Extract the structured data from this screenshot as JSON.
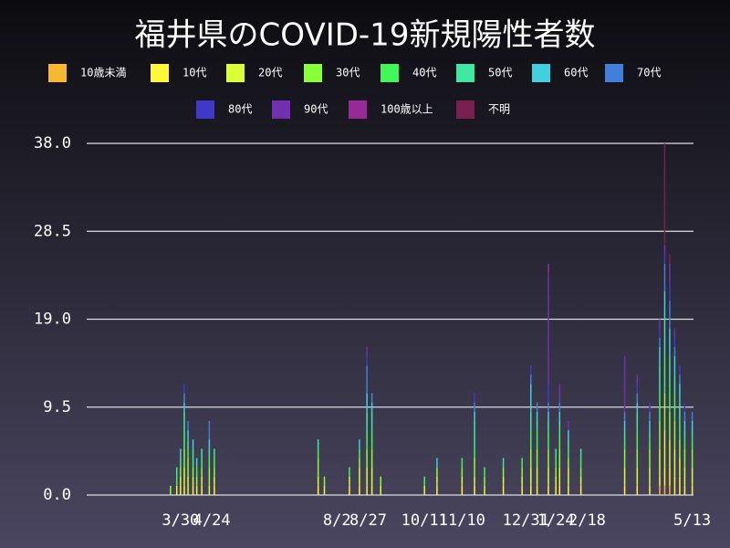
{
  "chart_data": {
    "type": "bar",
    "stacked": true,
    "title": "福井県のCOVID-19新規陽性者数",
    "x": [
      67,
      72,
      75,
      78,
      81,
      85,
      88,
      92,
      98,
      102,
      185,
      190,
      210,
      218,
      224,
      228,
      235,
      270,
      280,
      300,
      310,
      318,
      333,
      348,
      355,
      360,
      369,
      375,
      378,
      385,
      395,
      430,
      440,
      450,
      458,
      462,
      466,
      470,
      474,
      478,
      484
    ],
    "xlim": [
      0,
      485
    ],
    "xticks": [
      {
        "value": 75,
        "label": "3/30"
      },
      {
        "value": 100,
        "label": "4/24"
      },
      {
        "value": 200,
        "label": "8/2"
      },
      {
        "value": 225,
        "label": "8/27"
      },
      {
        "value": 270,
        "label": "10/11"
      },
      {
        "value": 300,
        "label": "11/10"
      },
      {
        "value": 351,
        "label": "12/31"
      },
      {
        "value": 375,
        "label": "1/24"
      },
      {
        "value": 400,
        "label": "2/18"
      },
      {
        "value": 484,
        "label": "5/13"
      }
    ],
    "ylim": [
      0,
      38
    ],
    "yticks": [
      {
        "value": 0,
        "label": "0.0"
      },
      {
        "value": 9.5,
        "label": "9.5"
      },
      {
        "value": 19,
        "label": "19.0"
      },
      {
        "value": 28.5,
        "label": "28.5"
      },
      {
        "value": 38,
        "label": "38.0"
      }
    ],
    "grid": true,
    "series": [
      {
        "name": "10歳未満",
        "color": "#f8b830",
        "values": [
          0,
          0,
          0,
          0,
          0,
          0,
          0,
          0,
          0,
          0,
          0,
          0,
          0,
          0,
          0,
          0,
          0,
          0,
          0,
          0,
          0,
          0,
          0,
          0,
          0,
          0,
          0,
          0,
          0,
          0,
          0,
          0,
          0,
          0,
          1,
          1,
          1,
          0,
          0,
          0,
          0
        ]
      },
      {
        "name": "10代",
        "color": "#fff838",
        "values": [
          0,
          0,
          1,
          1,
          0,
          1,
          0,
          1,
          0,
          1,
          1,
          0,
          1,
          1,
          1,
          1,
          0,
          0,
          1,
          1,
          1,
          0,
          1,
          1,
          1,
          1,
          1,
          1,
          1,
          1,
          1,
          1,
          1,
          1,
          1,
          2,
          2,
          2,
          2,
          1,
          1
        ]
      },
      {
        "name": "20代",
        "color": "#d8ff38",
        "values": [
          0,
          1,
          1,
          2,
          2,
          1,
          1,
          1,
          1,
          1,
          1,
          1,
          1,
          2,
          2,
          2,
          1,
          1,
          1,
          1,
          1,
          1,
          1,
          1,
          2,
          2,
          2,
          1,
          2,
          2,
          1,
          2,
          2,
          2,
          3,
          4,
          3,
          3,
          2,
          2,
          2
        ]
      },
      {
        "name": "30代",
        "color": "#88ff38",
        "values": [
          1,
          0,
          1,
          2,
          2,
          1,
          1,
          1,
          2,
          1,
          2,
          1,
          0,
          1,
          2,
          2,
          1,
          0,
          1,
          1,
          2,
          1,
          1,
          1,
          2,
          2,
          2,
          1,
          2,
          1,
          1,
          2,
          2,
          2,
          3,
          4,
          3,
          3,
          2,
          2,
          2
        ]
      },
      {
        "name": "40代",
        "color": "#40f858",
        "values": [
          0,
          1,
          0,
          2,
          1,
          1,
          1,
          1,
          1,
          1,
          1,
          0,
          1,
          1,
          2,
          2,
          0,
          1,
          0,
          1,
          1,
          1,
          0,
          1,
          2,
          2,
          2,
          1,
          2,
          1,
          1,
          1,
          2,
          1,
          3,
          4,
          3,
          3,
          2,
          1,
          1
        ]
      },
      {
        "name": "50代",
        "color": "#40e8a0",
        "values": [
          0,
          1,
          1,
          2,
          1,
          1,
          0,
          1,
          1,
          1,
          1,
          0,
          0,
          0,
          2,
          2,
          0,
          0,
          0,
          0,
          3,
          0,
          1,
          0,
          2,
          1,
          1,
          1,
          1,
          1,
          1,
          1,
          2,
          1,
          3,
          4,
          3,
          2,
          2,
          1,
          1
        ]
      },
      {
        "name": "60代",
        "color": "#40d0e0",
        "values": [
          0,
          0,
          1,
          1,
          1,
          1,
          1,
          0,
          1,
          0,
          0,
          0,
          0,
          1,
          2,
          1,
          0,
          0,
          1,
          0,
          1,
          0,
          0,
          0,
          3,
          1,
          1,
          0,
          1,
          1,
          0,
          1,
          1,
          1,
          2,
          3,
          3,
          2,
          2,
          1,
          1
        ]
      },
      {
        "name": "70代",
        "color": "#4080d8",
        "values": [
          0,
          0,
          0,
          1,
          1,
          0,
          0,
          0,
          2,
          0,
          0,
          0,
          0,
          0,
          3,
          1,
          0,
          0,
          0,
          0,
          1,
          0,
          0,
          0,
          1,
          1,
          1,
          0,
          1,
          0,
          0,
          1,
          1,
          1,
          1,
          3,
          3,
          1,
          1,
          1,
          1
        ]
      },
      {
        "name": "80代",
        "color": "#4038c8",
        "values": [
          0,
          0,
          0,
          1,
          0,
          0,
          0,
          0,
          0,
          0,
          0,
          0,
          0,
          0,
          1,
          0,
          0,
          0,
          0,
          0,
          1,
          0,
          0,
          0,
          1,
          0,
          2,
          0,
          0,
          0,
          0,
          0,
          1,
          1,
          1,
          1,
          2,
          1,
          1,
          1,
          0
        ]
      },
      {
        "name": "90代",
        "color": "#7030b0",
        "values": [
          0,
          0,
          0,
          0,
          0,
          0,
          0,
          0,
          0,
          0,
          0,
          0,
          0,
          0,
          1,
          0,
          0,
          0,
          0,
          0,
          0,
          0,
          0,
          0,
          0,
          0,
          12,
          0,
          2,
          1,
          0,
          6,
          1,
          0,
          1,
          1,
          2,
          1,
          0,
          0,
          0
        ]
      },
      {
        "name": "100歳以上",
        "color": "#982a98",
        "values": [
          0,
          0,
          0,
          0,
          0,
          0,
          0,
          0,
          0,
          0,
          0,
          0,
          0,
          0,
          0,
          0,
          0,
          0,
          0,
          0,
          0,
          0,
          0,
          0,
          0,
          0,
          1,
          0,
          0,
          0,
          0,
          0,
          0,
          0,
          0,
          0,
          0,
          0,
          0,
          0,
          0
        ]
      },
      {
        "name": "不明",
        "color": "#782050",
        "values": [
          0,
          0,
          0,
          0,
          0,
          0,
          0,
          0,
          0,
          0,
          0,
          0,
          0,
          0,
          0,
          0,
          0,
          0,
          0,
          0,
          0,
          0,
          0,
          0,
          0,
          0,
          0,
          0,
          0,
          0,
          0,
          0,
          0,
          0,
          0,
          11,
          1,
          0,
          0,
          0,
          0
        ]
      }
    ]
  }
}
